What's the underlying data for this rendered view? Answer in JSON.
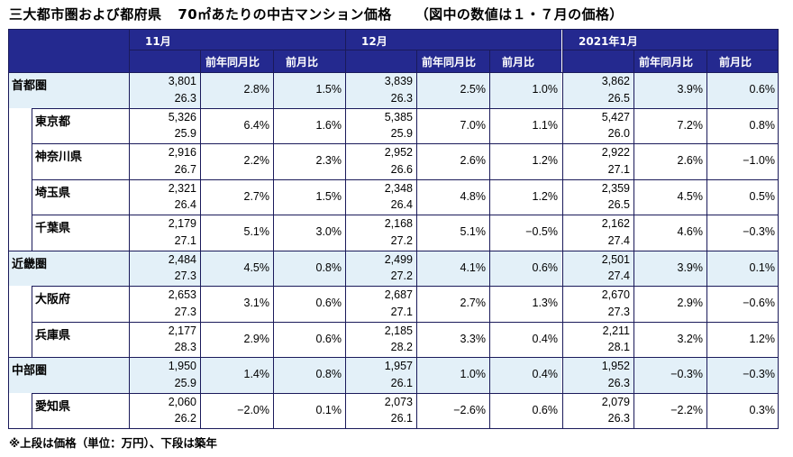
{
  "title": {
    "part1": "三大都市圏および都府県",
    "part2": "70㎡あたりの中古マンション価格",
    "part3": "（図中の数値は１・７月の価格）"
  },
  "columns": {
    "periods": [
      "11月",
      "12月",
      "2021年1月"
    ],
    "yoy_label": "前年同月比",
    "mom_label": "前月比"
  },
  "rows": [
    {
      "name": "首都圏",
      "level": 0,
      "data": [
        [
          "3,801",
          "26.3",
          "2.8%",
          "1.5%"
        ],
        [
          "3,839",
          "26.3",
          "2.5%",
          "1.0%"
        ],
        [
          "3,862",
          "26.5",
          "3.9%",
          "0.6%"
        ]
      ]
    },
    {
      "name": "東京都",
      "level": 1,
      "data": [
        [
          "5,326",
          "25.9",
          "6.4%",
          "1.6%"
        ],
        [
          "5,385",
          "25.9",
          "7.0%",
          "1.1%"
        ],
        [
          "5,427",
          "26.0",
          "7.2%",
          "0.8%"
        ]
      ]
    },
    {
      "name": "神奈川県",
      "level": 1,
      "data": [
        [
          "2,916",
          "26.7",
          "2.2%",
          "2.3%"
        ],
        [
          "2,952",
          "26.6",
          "2.6%",
          "1.2%"
        ],
        [
          "2,922",
          "27.1",
          "2.6%",
          "−1.0%"
        ]
      ]
    },
    {
      "name": "埼玉県",
      "level": 1,
      "data": [
        [
          "2,321",
          "26.4",
          "2.7%",
          "1.5%"
        ],
        [
          "2,348",
          "26.4",
          "4.8%",
          "1.2%"
        ],
        [
          "2,359",
          "26.5",
          "4.5%",
          "0.5%"
        ]
      ]
    },
    {
      "name": "千葉県",
      "level": 1,
      "data": [
        [
          "2,179",
          "27.1",
          "5.1%",
          "3.0%"
        ],
        [
          "2,168",
          "27.2",
          "5.1%",
          "−0.5%"
        ],
        [
          "2,162",
          "27.4",
          "4.6%",
          "−0.3%"
        ]
      ]
    },
    {
      "name": "近畿圏",
      "level": 0,
      "data": [
        [
          "2,484",
          "27.3",
          "4.5%",
          "0.8%"
        ],
        [
          "2,499",
          "27.2",
          "4.1%",
          "0.6%"
        ],
        [
          "2,501",
          "27.4",
          "3.9%",
          "0.1%"
        ]
      ]
    },
    {
      "name": "大阪府",
      "level": 1,
      "data": [
        [
          "2,653",
          "27.3",
          "3.1%",
          "0.6%"
        ],
        [
          "2,687",
          "27.1",
          "2.7%",
          "1.3%"
        ],
        [
          "2,670",
          "27.3",
          "2.9%",
          "−0.6%"
        ]
      ]
    },
    {
      "name": "兵庫県",
      "level": 1,
      "data": [
        [
          "2,177",
          "28.3",
          "2.9%",
          "0.6%"
        ],
        [
          "2,185",
          "28.2",
          "3.3%",
          "0.4%"
        ],
        [
          "2,211",
          "28.1",
          "3.2%",
          "1.2%"
        ]
      ]
    },
    {
      "name": "中部圏",
      "level": 0,
      "data": [
        [
          "1,950",
          "25.9",
          "1.4%",
          "0.8%"
        ],
        [
          "1,957",
          "26.1",
          "1.0%",
          "0.4%"
        ],
        [
          "1,952",
          "26.3",
          "−0.3%",
          "−0.3%"
        ]
      ]
    },
    {
      "name": "愛知県",
      "level": 1,
      "data": [
        [
          "2,060",
          "26.2",
          "−2.0%",
          "0.1%"
        ],
        [
          "2,073",
          "26.1",
          "−2.6%",
          "0.6%"
        ],
        [
          "2,079",
          "26.3",
          "−2.2%",
          "0.3%"
        ]
      ]
    }
  ],
  "footnote": "※上段は価格（単位：万円）、下段は築年"
}
